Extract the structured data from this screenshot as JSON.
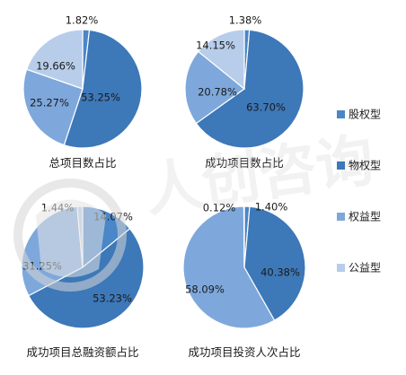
{
  "colors": {
    "股权型": "#4a86c8",
    "物权型": "#3d78b8",
    "权益型": "#7ea8dc",
    "公益型": "#b7cdea"
  },
  "watermark": "人创咨询",
  "chart_data": [
    {
      "type": "pie",
      "title": "总项目数占比",
      "categories": [
        "股权型",
        "物权型",
        "权益型",
        "公益型"
      ],
      "values": [
        1.82,
        53.25,
        25.27,
        19.66
      ],
      "labels": [
        "1.82%",
        "53.25%",
        "25.27%",
        "19.66%"
      ]
    },
    {
      "type": "pie",
      "title": "成功项目数占比",
      "categories": [
        "股权型",
        "物权型",
        "权益型",
        "公益型"
      ],
      "values": [
        1.38,
        63.7,
        20.78,
        14.15
      ],
      "labels": [
        "1.38%",
        "63.70%",
        "20.78%",
        "14.15%"
      ]
    },
    {
      "type": "pie",
      "title": "成功项目总融资额占比",
      "categories": [
        "股权型",
        "物权型",
        "权益型",
        "公益型"
      ],
      "values": [
        14.07,
        53.23,
        31.25,
        1.44
      ],
      "labels": [
        "14.07%",
        "53.23%",
        "31.25%",
        "1.44%"
      ]
    },
    {
      "type": "pie",
      "title": "成功项目投资人次占比",
      "categories": [
        "股权型",
        "物权型",
        "权益型",
        "公益型"
      ],
      "values": [
        1.4,
        40.38,
        58.09,
        0.12
      ],
      "labels": [
        "1.40%",
        "40.38%",
        "58.09%",
        "0.12%"
      ]
    }
  ],
  "legend": {
    "placement": "right",
    "items": [
      "股权型",
      "物权型",
      "权益型",
      "公益型"
    ]
  }
}
